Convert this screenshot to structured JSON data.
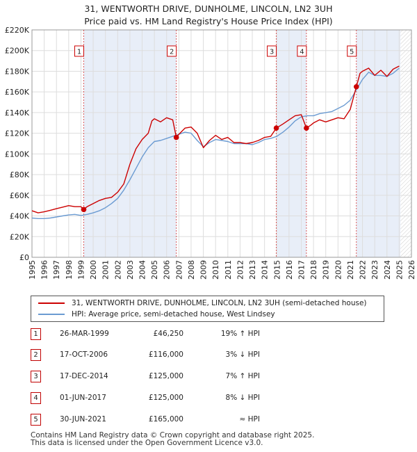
{
  "title_line1": "31, WENTWORTH DRIVE, DUNHOLME, LINCOLN, LN2 3UH",
  "title_line2": "Price paid vs. HM Land Registry's House Price Index (HPI)",
  "legend": [
    {
      "label": "31, WENTWORTH DRIVE, DUNHOLME, LINCOLN, LN2 3UH (semi-detached house)",
      "color": "#cc0000"
    },
    {
      "label": "HPI: Average price, semi-detached house, West Lindsey",
      "color": "#6b9bd2"
    }
  ],
  "transactions": [
    {
      "num": "1",
      "date": "26-MAR-1999",
      "price": "£46,250",
      "hpi": "19% ↑ HPI"
    },
    {
      "num": "2",
      "date": "17-OCT-2006",
      "price": "£116,000",
      "hpi": "3% ↓ HPI"
    },
    {
      "num": "3",
      "date": "17-DEC-2014",
      "price": "£125,000",
      "hpi": "7% ↑ HPI"
    },
    {
      "num": "4",
      "date": "01-JUN-2017",
      "price": "£125,000",
      "hpi": "8% ↓ HPI"
    },
    {
      "num": "5",
      "date": "30-JUN-2021",
      "price": "£165,000",
      "hpi": "≈ HPI"
    }
  ],
  "footer_line1": "Contains HM Land Registry data © Crown copyright and database right 2025.",
  "footer_line2": "This data is licensed under the Open Government Licence v3.0.",
  "colors": {
    "price": "#cc0000",
    "hpi": "#6b9bd2",
    "shade": "#e8eef8",
    "grid": "#dddddd"
  },
  "chart_data": {
    "type": "line",
    "title": "31, WENTWORTH DRIVE, DUNHOLME, LINCOLN, LN2 3UH — Price paid vs. HM Land Registry's House Price Index (HPI)",
    "xlabel": "",
    "ylabel": "",
    "xlim": [
      1995,
      2026
    ],
    "ylim": [
      0,
      220000
    ],
    "x_ticks": [
      1995,
      1996,
      1997,
      1998,
      1999,
      2000,
      2001,
      2002,
      2003,
      2004,
      2005,
      2006,
      2007,
      2008,
      2009,
      2010,
      2011,
      2012,
      2013,
      2014,
      2015,
      2016,
      2017,
      2018,
      2019,
      2020,
      2021,
      2022,
      2023,
      2024,
      2025,
      2026
    ],
    "y_ticks": [
      {
        "value": 0,
        "label": "£0"
      },
      {
        "value": 20000,
        "label": "£20K"
      },
      {
        "value": 40000,
        "label": "£40K"
      },
      {
        "value": 60000,
        "label": "£60K"
      },
      {
        "value": 80000,
        "label": "£80K"
      },
      {
        "value": 100000,
        "label": "£100K"
      },
      {
        "value": 120000,
        "label": "£120K"
      },
      {
        "value": 140000,
        "label": "£140K"
      },
      {
        "value": 160000,
        "label": "£160K"
      },
      {
        "value": 180000,
        "label": "£180K"
      },
      {
        "value": 200000,
        "label": "£200K"
      },
      {
        "value": 220000,
        "label": "£220K"
      }
    ],
    "shaded_ranges": [
      [
        1999.23,
        2006.79
      ],
      [
        2014.96,
        2017.42
      ],
      [
        2021.5,
        2025.1
      ]
    ],
    "forecast_start": 2025.1,
    "sales": [
      {
        "num": "1",
        "x": 1999.23,
        "y": 46250
      },
      {
        "num": "2",
        "x": 2006.79,
        "y": 116000
      },
      {
        "num": "3",
        "x": 2014.96,
        "y": 125000
      },
      {
        "num": "4",
        "x": 2017.42,
        "y": 125000
      },
      {
        "num": "5",
        "x": 2021.5,
        "y": 165000
      }
    ],
    "series": [
      {
        "name": "31, WENTWORTH DRIVE, DUNHOLME, LINCOLN, LN2 3UH (semi-detached house)",
        "x": [
          1995.0,
          1995.5,
          1996.0,
          1996.5,
          1997.0,
          1997.5,
          1998.0,
          1998.5,
          1999.0,
          1999.23,
          1999.5,
          2000.0,
          2000.5,
          2001.0,
          2001.5,
          2002.0,
          2002.5,
          2003.0,
          2003.5,
          2004.0,
          2004.5,
          2004.8,
          2005.0,
          2005.5,
          2006.0,
          2006.5,
          2006.79,
          2007.0,
          2007.5,
          2008.0,
          2008.5,
          2009.0,
          2009.5,
          2010.0,
          2010.5,
          2011.0,
          2011.5,
          2012.0,
          2012.5,
          2013.0,
          2013.5,
          2014.0,
          2014.5,
          2014.96,
          2015.5,
          2016.0,
          2016.5,
          2017.0,
          2017.42,
          2017.8,
          2018.0,
          2018.5,
          2019.0,
          2019.5,
          2020.0,
          2020.5,
          2021.0,
          2021.5,
          2021.8,
          2022.0,
          2022.5,
          2023.0,
          2023.5,
          2024.0,
          2024.5,
          2025.0
        ],
        "y": [
          45000,
          43000,
          44000,
          45500,
          47000,
          48500,
          50000,
          49000,
          49000,
          46250,
          49000,
          52000,
          55000,
          57000,
          58000,
          63000,
          71000,
          90000,
          105000,
          114000,
          120000,
          132000,
          134000,
          131000,
          135000,
          133000,
          116000,
          119000,
          125000,
          126000,
          120000,
          106000,
          113000,
          118000,
          114000,
          116000,
          111000,
          111000,
          110000,
          111000,
          113000,
          116000,
          117000,
          125000,
          129000,
          133000,
          137000,
          138000,
          125000,
          128000,
          130000,
          133000,
          131000,
          133000,
          135000,
          134000,
          143000,
          165000,
          178000,
          180000,
          183000,
          176000,
          181000,
          175000,
          182000,
          185000
        ]
      },
      {
        "name": "HPI: Average price, semi-detached house, West Lindsey",
        "x": [
          1995.0,
          1995.5,
          1996.0,
          1996.5,
          1997.0,
          1997.5,
          1998.0,
          1998.5,
          1999.0,
          1999.5,
          2000.0,
          2000.5,
          2001.0,
          2001.5,
          2002.0,
          2002.5,
          2003.0,
          2003.5,
          2004.0,
          2004.5,
          2005.0,
          2005.5,
          2006.0,
          2006.5,
          2007.0,
          2007.5,
          2008.0,
          2008.5,
          2009.0,
          2009.5,
          2010.0,
          2010.5,
          2011.0,
          2011.5,
          2012.0,
          2012.5,
          2013.0,
          2013.5,
          2014.0,
          2014.5,
          2015.0,
          2015.5,
          2016.0,
          2016.5,
          2017.0,
          2017.5,
          2018.0,
          2018.5,
          2019.0,
          2019.5,
          2020.0,
          2020.5,
          2021.0,
          2021.5,
          2022.0,
          2022.5,
          2023.0,
          2023.5,
          2024.0,
          2024.5,
          2025.0
        ],
        "y": [
          38000,
          37500,
          37500,
          38000,
          39000,
          40000,
          41000,
          41500,
          40500,
          41500,
          43000,
          45000,
          48000,
          52000,
          57000,
          65000,
          75000,
          86000,
          97000,
          106000,
          112000,
          113000,
          115000,
          117000,
          119000,
          121000,
          120000,
          113000,
          107000,
          111000,
          114000,
          113000,
          112000,
          110000,
          110000,
          110000,
          109000,
          111000,
          114000,
          115000,
          117000,
          121000,
          126000,
          132000,
          136000,
          137000,
          137000,
          139000,
          140000,
          141000,
          144000,
          147000,
          152000,
          162000,
          172000,
          179000,
          176000,
          176000,
          175000,
          178000,
          183000
        ]
      }
    ]
  }
}
